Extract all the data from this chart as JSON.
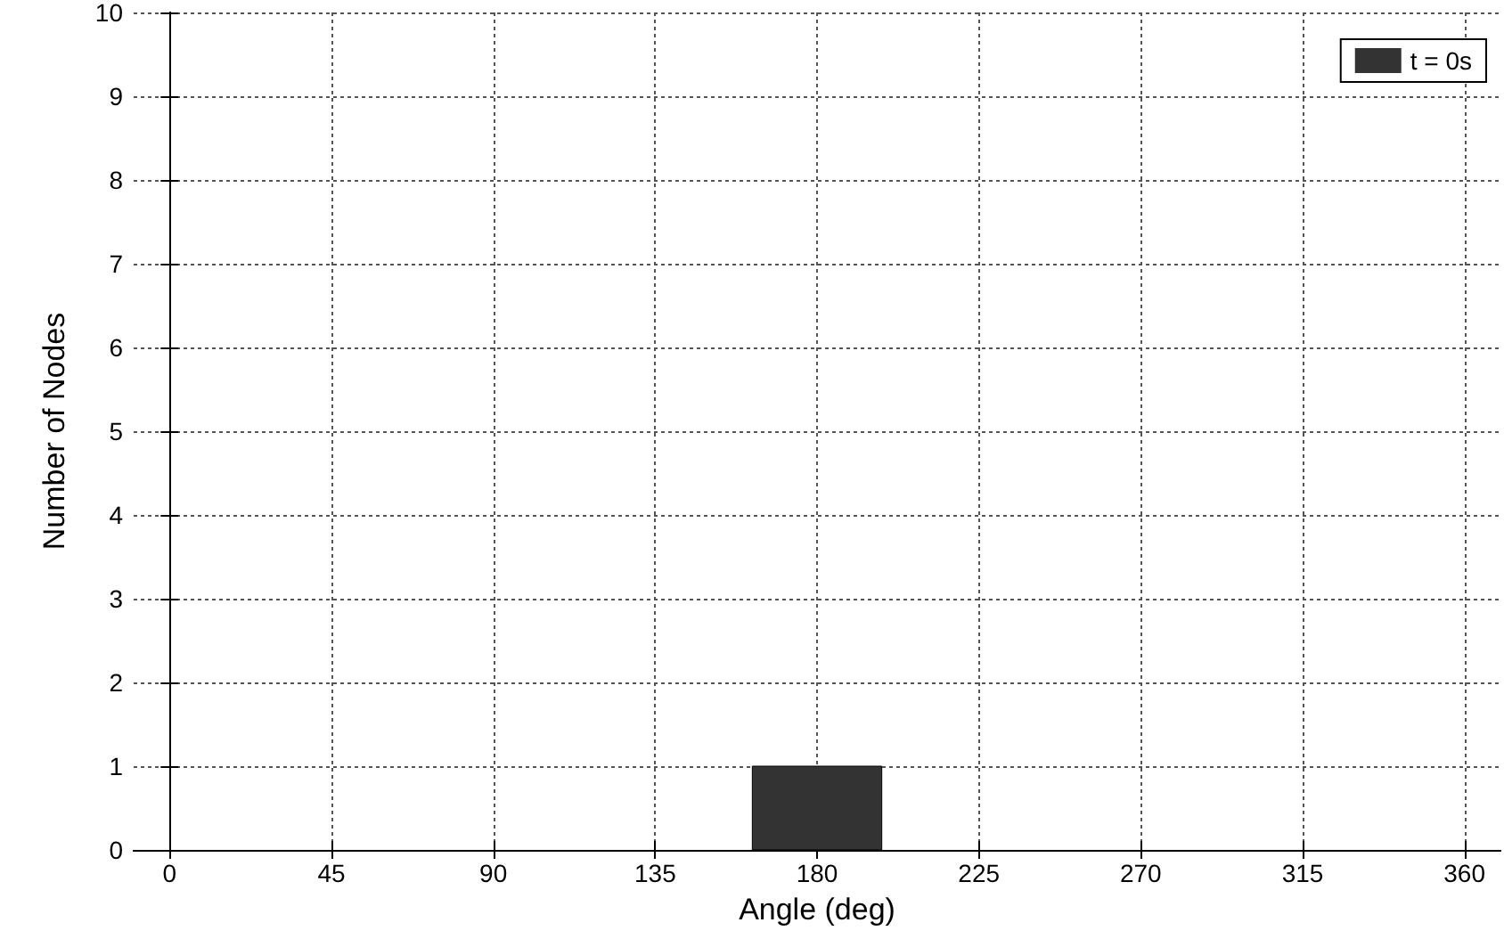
{
  "chart_data": {
    "type": "histogram",
    "xlabel": "Angle (deg)",
    "ylabel": "Number of Nodes",
    "bins": [
      162,
      198
    ],
    "series": [
      {
        "name": "t = 0s",
        "color": "#333333",
        "values": [
          1
        ]
      }
    ],
    "xlim": [
      -10,
      370
    ],
    "xticks": [
      0,
      45,
      90,
      135,
      180,
      225,
      270,
      315,
      360
    ],
    "ylim": [
      0,
      10
    ],
    "yticks": [
      0,
      1,
      2,
      3,
      4,
      5,
      6,
      7,
      8,
      9,
      10
    ],
    "grid": true,
    "legend": "top right"
  }
}
